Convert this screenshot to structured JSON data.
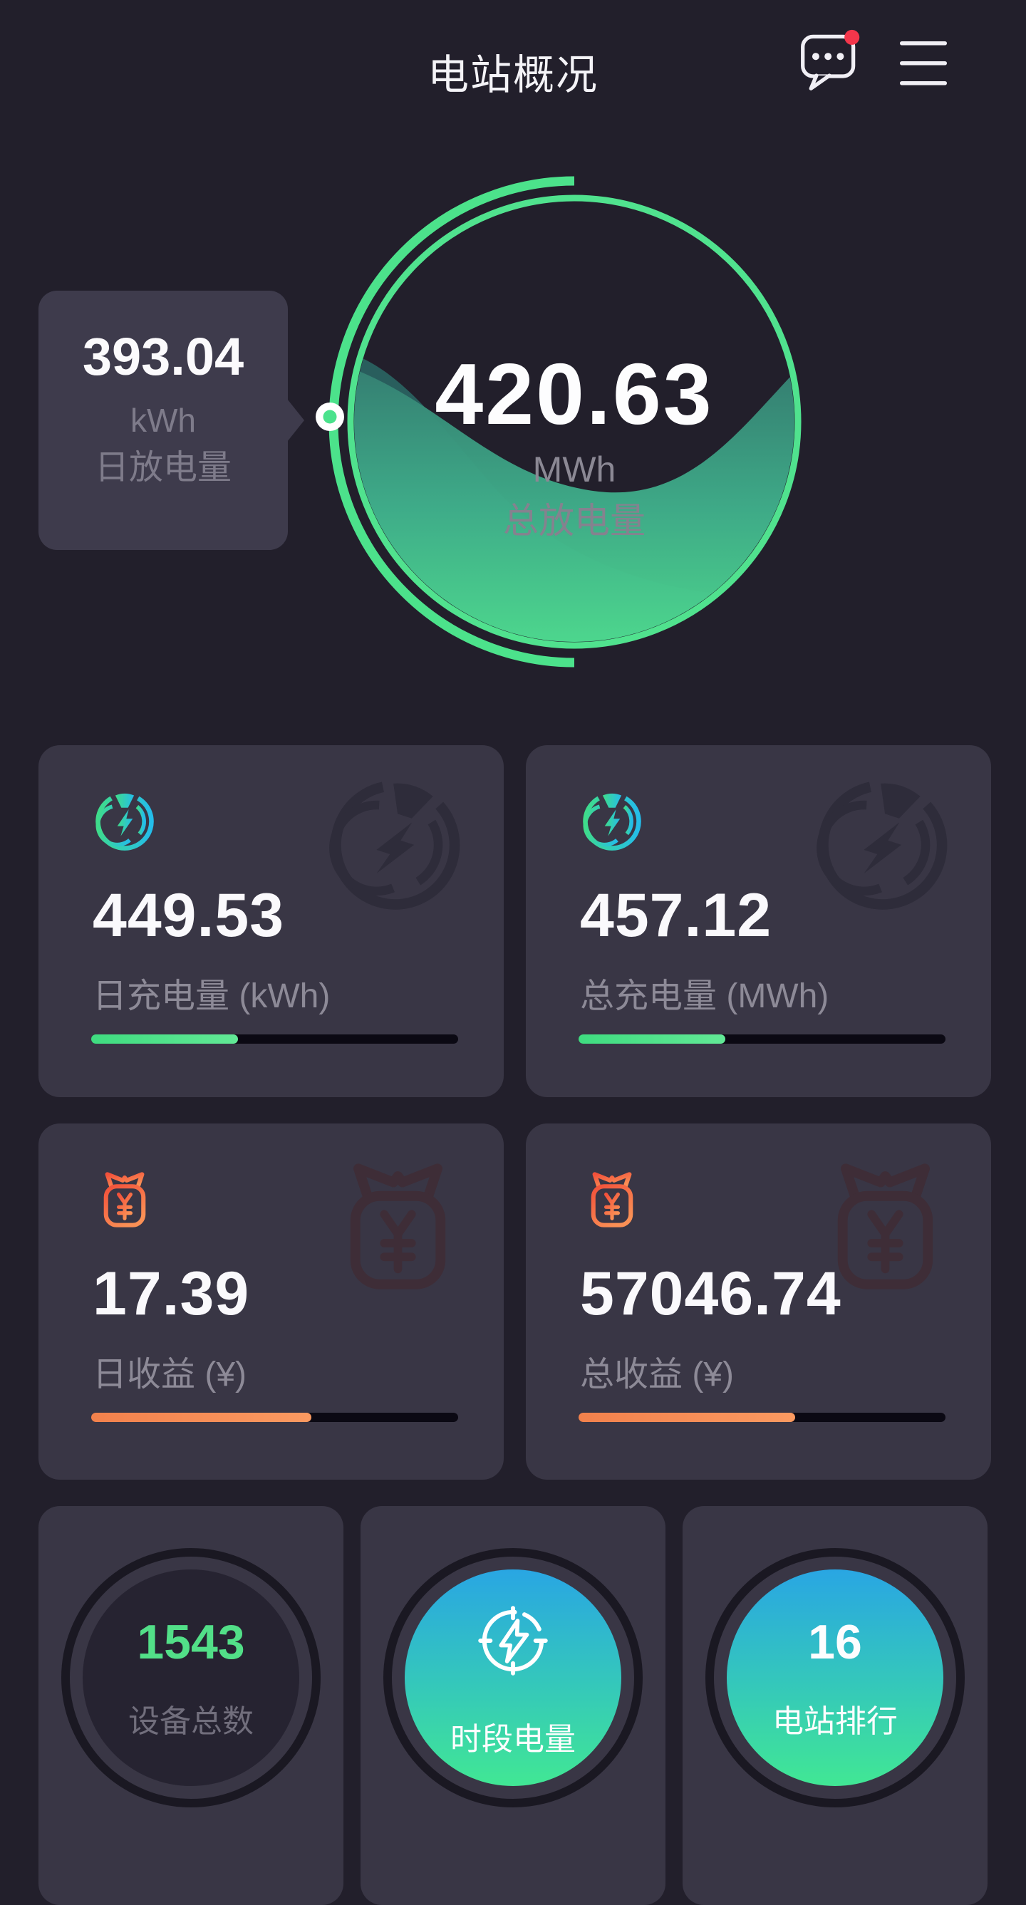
{
  "header": {
    "title": "电站概况",
    "message_icon": "message-bubble-icon",
    "menu_icon": "hamburger-menu-icon",
    "has_unread_badge": true
  },
  "gauge": {
    "value": "420.63",
    "unit": "MWh",
    "label": "总放电量",
    "icon": "liquid-ring-gauge"
  },
  "tooltip": {
    "value": "393.04",
    "unit": "kWh",
    "label": "日放电量"
  },
  "stat_cards": [
    {
      "id": "daily-charge",
      "value": "449.53",
      "label": "日充电量 (kWh)",
      "icon": "charging-ring-bolt-icon",
      "accent": "green",
      "progress_pct": 40
    },
    {
      "id": "total-charge",
      "value": "457.12",
      "label": "总充电量 (MWh)",
      "icon": "charging-ring-bolt-icon",
      "accent": "green",
      "progress_pct": 40
    },
    {
      "id": "daily-income",
      "value": "17.39",
      "label": "日收益 (¥)",
      "icon": "money-pouch-icon",
      "accent": "orange",
      "progress_pct": 60
    },
    {
      "id": "total-income",
      "value": "57046.74",
      "label": "总收益 (¥)",
      "icon": "money-pouch-icon",
      "accent": "orange",
      "progress_pct": 59
    }
  ],
  "bottom_cards": [
    {
      "id": "device-total",
      "value": "1543",
      "label": "设备总数",
      "style": "dark-circle"
    },
    {
      "id": "period-energy",
      "label": "时段电量",
      "style": "gradient-circle",
      "icon": "compass-bolt-icon"
    },
    {
      "id": "station-ranking",
      "value": "16",
      "label": "电站排行",
      "style": "gradient-circle"
    }
  ],
  "colors": {
    "page_bg": "#221f2b",
    "card_bg": "#393645",
    "tooltip_bg": "#3e3b4c",
    "accent_green": "#4ce28b",
    "accent_cyan": "#28c0e8",
    "accent_orange": "#f78d58",
    "accent_orange_deep": "#f2543c",
    "progress_track": "#0b0913",
    "text_primary": "#faf9fc",
    "text_secondary": "#8d8a97",
    "device_count_green": "#52df88",
    "circle_gradient_top": "#29a6e3",
    "circle_gradient_bottom": "#41e794",
    "notification_red": "#f4364b"
  }
}
